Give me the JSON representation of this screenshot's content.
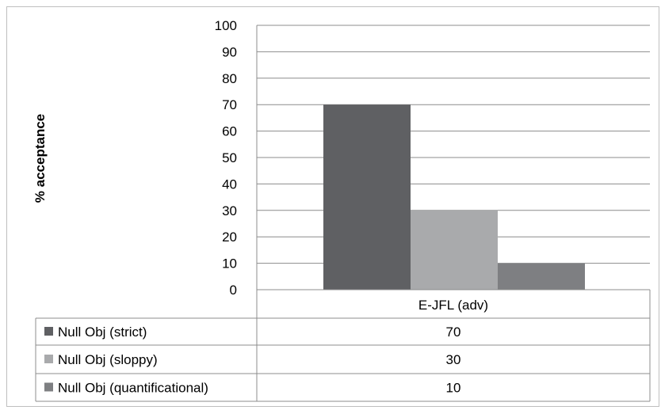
{
  "chart_data": {
    "type": "bar",
    "title": "",
    "xlabel": "",
    "ylabel": "% acceptance",
    "ylim": [
      0,
      100
    ],
    "yticks": [
      0,
      10,
      20,
      30,
      40,
      50,
      60,
      70,
      80,
      90,
      100
    ],
    "categories": [
      "E-JFL (adv)"
    ],
    "series": [
      {
        "name": "Null Obj (strict)",
        "values": [
          70
        ],
        "color": "#5f6063"
      },
      {
        "name": "Null Obj (sloppy)",
        "values": [
          30
        ],
        "color": "#a9aaac"
      },
      {
        "name": "Null Obj (quantificational)",
        "values": [
          10
        ],
        "color": "#7e7f82"
      }
    ],
    "grid": true,
    "legend": "data-table",
    "data_table": {
      "rows": [
        {
          "label": "Null Obj (strict)",
          "value": "70"
        },
        {
          "label": "Null Obj (sloppy)",
          "value": "30"
        },
        {
          "label": "Null Obj (quantificational)",
          "value": "10"
        }
      ]
    }
  }
}
